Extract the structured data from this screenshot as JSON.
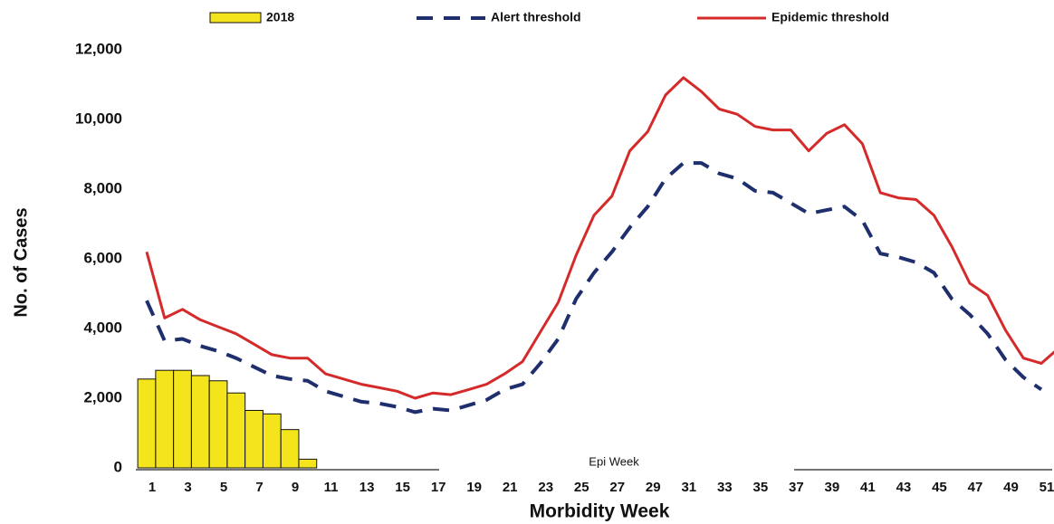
{
  "chart_data": {
    "type": "bar",
    "x_label": "Morbidity Week",
    "y_label": "No. of Cases",
    "annotation": "Epi Week",
    "categories": [
      1,
      null,
      3,
      null,
      5,
      null,
      7,
      null,
      9,
      null,
      11,
      null,
      13,
      null,
      15,
      null,
      17,
      null,
      19,
      null,
      21,
      null,
      23,
      null,
      25,
      null,
      27,
      null,
      29,
      null,
      31,
      null,
      33,
      null,
      35,
      null,
      37,
      null,
      39,
      null,
      41,
      null,
      43,
      null,
      45,
      null,
      47,
      null,
      49,
      null,
      51,
      null
    ],
    "ylim": [
      0,
      12000
    ],
    "yticks": [
      {
        "value": 0,
        "label": "0"
      },
      {
        "value": 2000,
        "label": "2,000"
      },
      {
        "value": 4000,
        "label": "4,000"
      },
      {
        "value": 6000,
        "label": "6,000"
      },
      {
        "value": 8000,
        "label": "8,000"
      },
      {
        "value": 10000,
        "label": "10,000"
      },
      {
        "value": 12000,
        "label": "12,000"
      }
    ],
    "series": [
      {
        "name": "2018",
        "type": "bar",
        "color": "#f3e41c",
        "values": [
          2550,
          2800,
          2800,
          2650,
          2500,
          2150,
          1650,
          1550,
          1100,
          250,
          null,
          null,
          null,
          null,
          null,
          null,
          null,
          null,
          null,
          null,
          null,
          null,
          null,
          null,
          null,
          null,
          null,
          null,
          null,
          null,
          null,
          null,
          null,
          null,
          null,
          null,
          null,
          null,
          null,
          null,
          null,
          null,
          null,
          null,
          null,
          null,
          null,
          null,
          null,
          null,
          null,
          null
        ]
      },
      {
        "name": "Alert threshold",
        "type": "line",
        "dashed": true,
        "color": "#1f2f6e",
        "values": [
          4800,
          3650,
          3700,
          3500,
          3350,
          3150,
          2900,
          2650,
          2550,
          2500,
          2200,
          2050,
          1900,
          1850,
          1750,
          1600,
          1700,
          1650,
          1800,
          1950,
          2250,
          2400,
          3000,
          3700,
          4850,
          5600,
          6200,
          6900,
          7500,
          8300,
          8750,
          8750,
          8450,
          8300,
          7950,
          7900,
          7600,
          7300,
          7400,
          7500,
          7100,
          6150,
          6050,
          5900,
          5600,
          4850,
          4400,
          3850,
          3100,
          2600,
          2250,
          null
        ]
      },
      {
        "name": "Epidemic threshold",
        "type": "line",
        "dashed": false,
        "color": "#d42a2a",
        "values": [
          6200,
          4300,
          4550,
          4250,
          4050,
          3850,
          3550,
          3250,
          3150,
          3150,
          2700,
          2550,
          2400,
          2300,
          2200,
          2000,
          2150,
          2100,
          2250,
          2400,
          2700,
          3050,
          3900,
          4750,
          6100,
          7250,
          7800,
          9100,
          9650,
          10700,
          11200,
          10800,
          10300,
          10150,
          9800,
          9700,
          9700,
          9100,
          9600,
          9850,
          9300,
          7900,
          7750,
          7700,
          7250,
          6350,
          5300,
          4950,
          3950,
          3150,
          3000,
          3450
        ]
      }
    ]
  }
}
